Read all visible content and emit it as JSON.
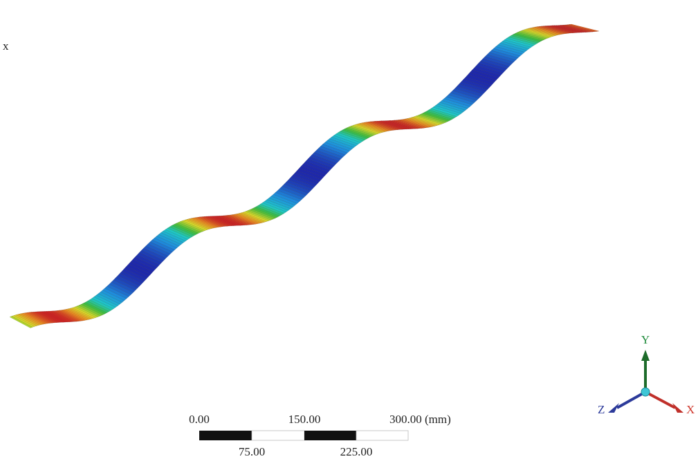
{
  "corner_label": "x",
  "scale_bar": {
    "top_labels": [
      "0.00",
      "150.00",
      "300.00 (mm)"
    ],
    "bottom_labels": [
      "75.00",
      "225.00"
    ]
  },
  "triad": {
    "y_label": "Y",
    "x_label": "X",
    "z_label": "Z"
  }
}
